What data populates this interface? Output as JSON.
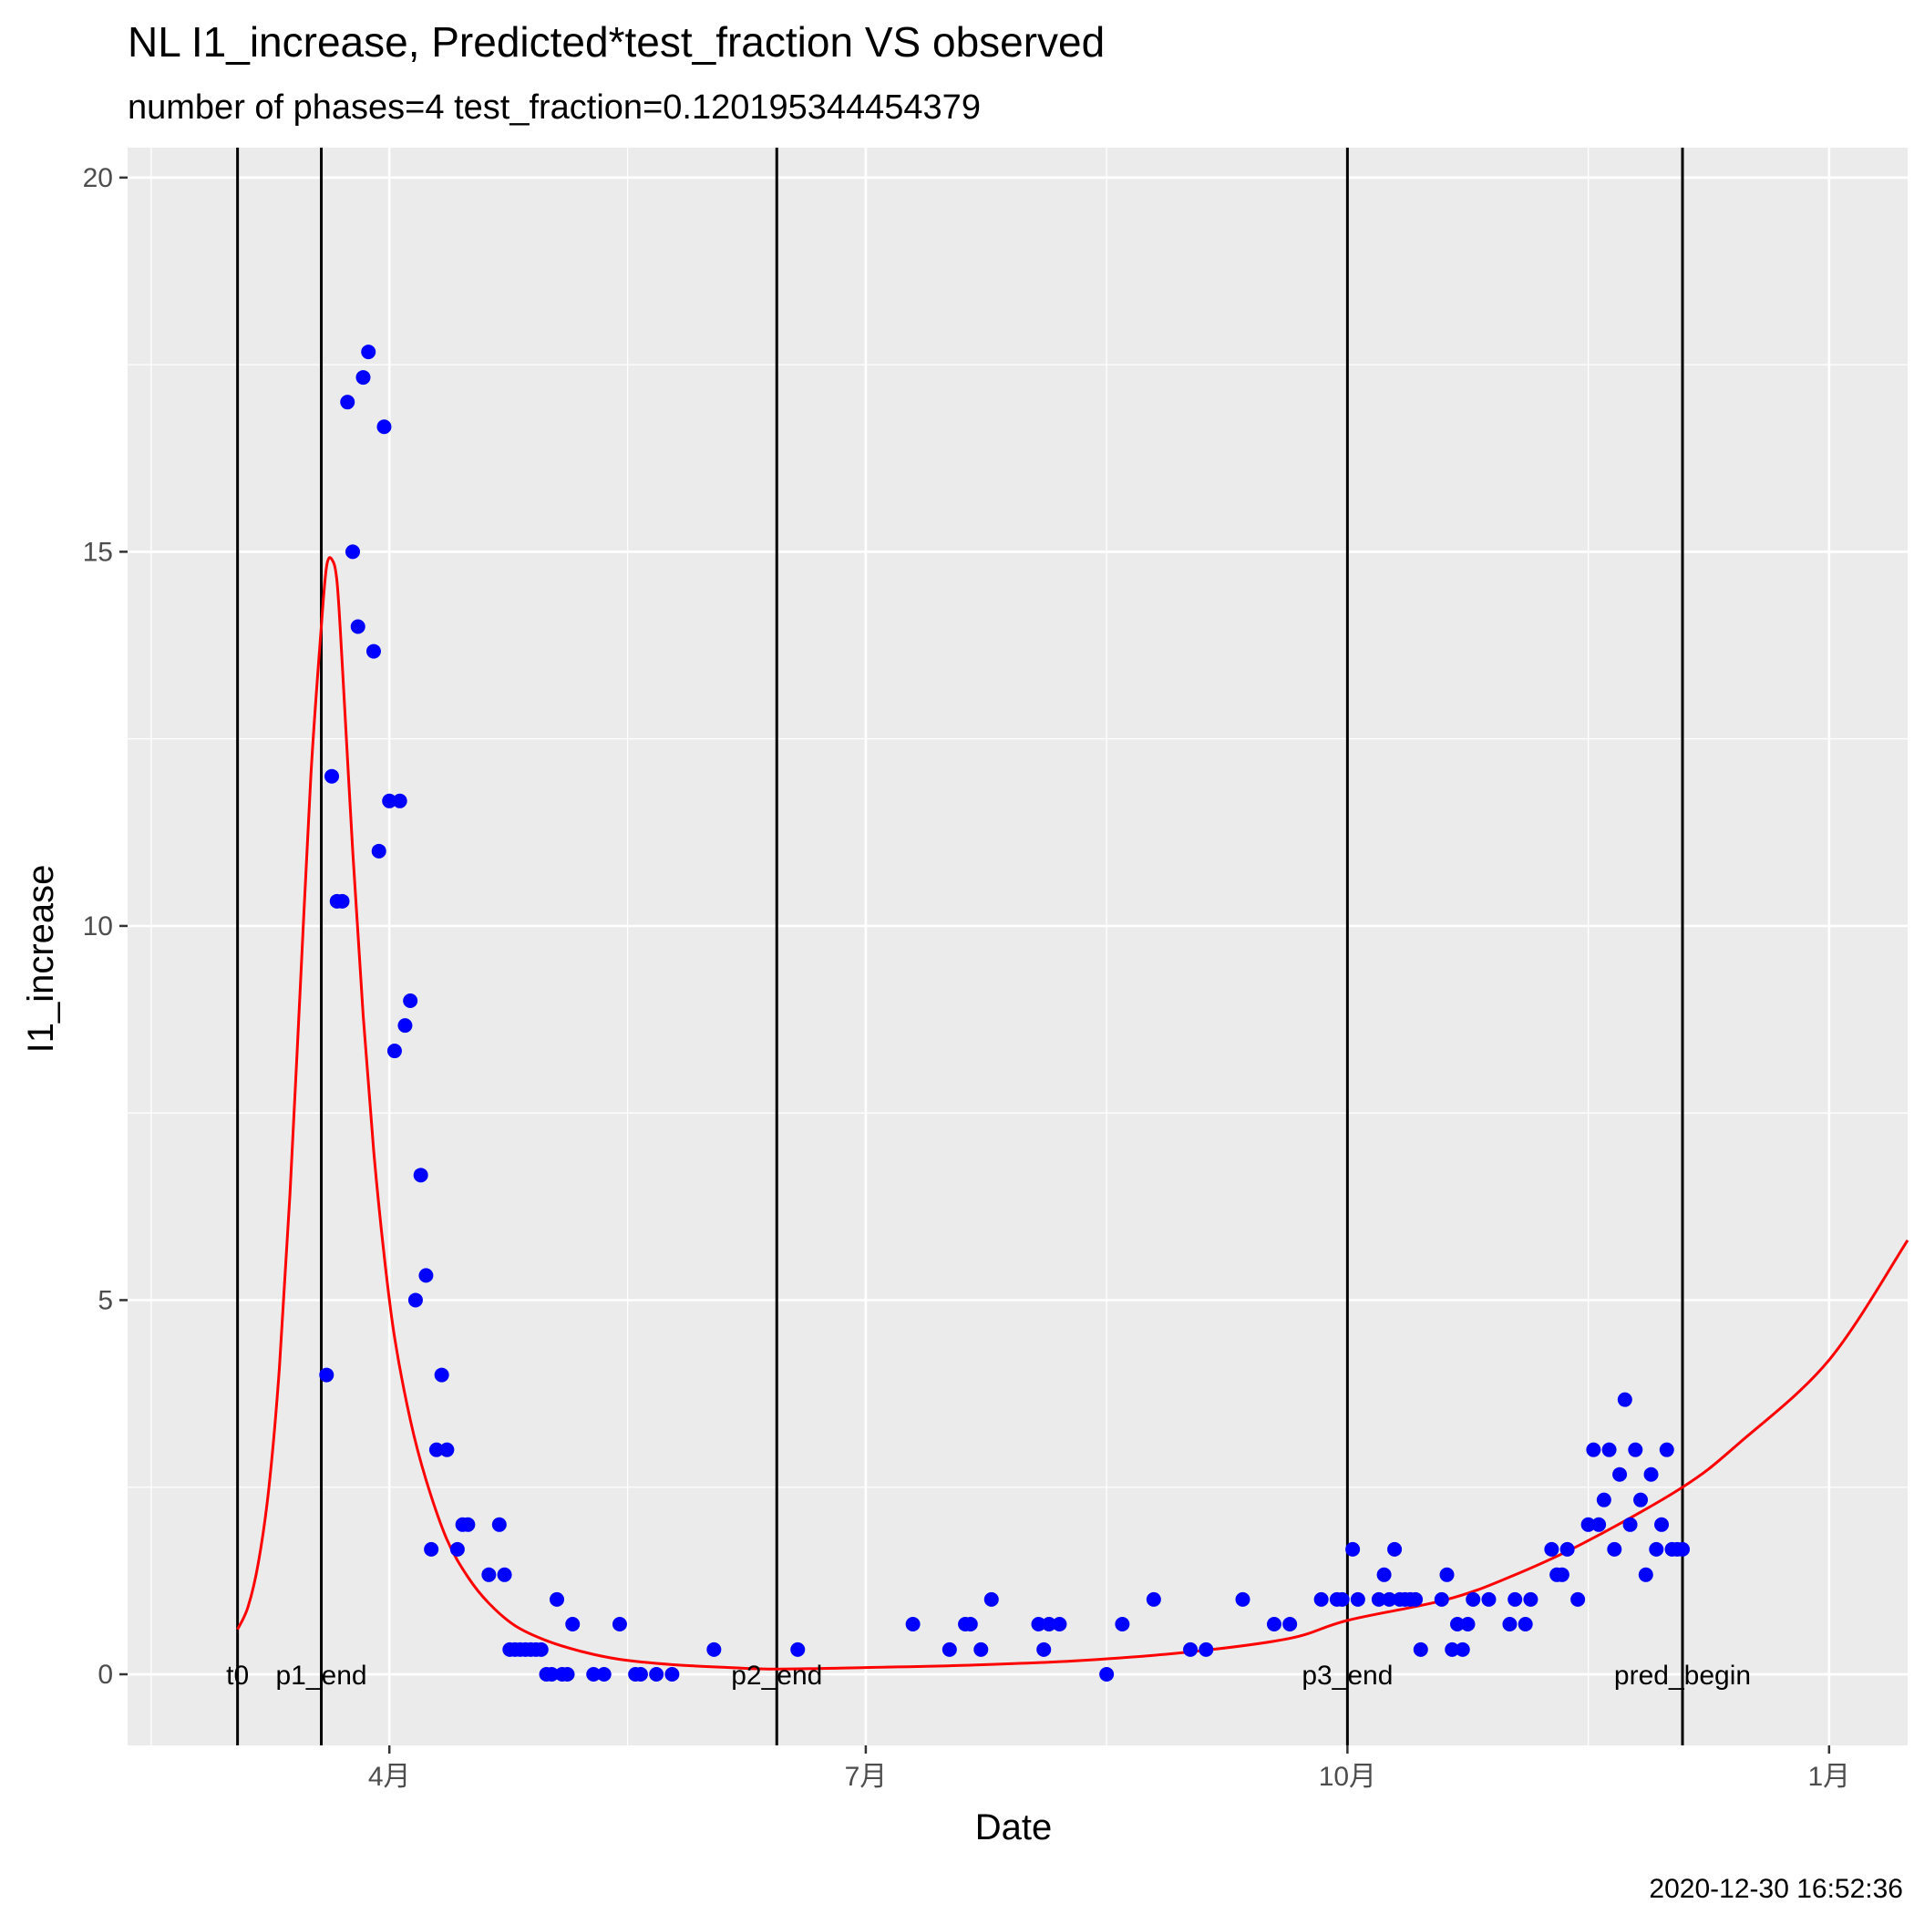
{
  "chart_data": {
    "type": "scatter",
    "title": "NL I1_increase, Predicted*test_fraction VS observed",
    "subtitle": "number of phases=4   test_fraction=0.120195344454379",
    "xlabel": "Date",
    "ylabel": "I1_increase",
    "caption": "2020-12-30 16:52:36",
    "x_ticks": [
      {
        "date": "2020-04-01",
        "label": "4月"
      },
      {
        "date": "2020-07-01",
        "label": "7月"
      },
      {
        "date": "2020-10-01",
        "label": "10月"
      },
      {
        "date": "2021-01-01",
        "label": "1月"
      }
    ],
    "y_ticks": [
      0,
      5,
      10,
      15,
      20
    ],
    "xlim": [
      "2020-02-11",
      "2021-01-16"
    ],
    "ylim": [
      -0.95,
      20.4
    ],
    "grid": true,
    "colors": {
      "panel_bg": "#ebebeb",
      "grid": "#ffffff",
      "observed": "#0000ff",
      "predicted": "#ff0000",
      "vlines": "#000000"
    },
    "vlines": [
      {
        "date": "2020-03-03",
        "label": "t0"
      },
      {
        "date": "2020-03-19",
        "label": "p1_end"
      },
      {
        "date": "2020-06-14",
        "label": "p2_end"
      },
      {
        "date": "2020-10-01",
        "label": "p3_end"
      },
      {
        "date": "2020-12-04",
        "label": "pred_begin"
      }
    ],
    "series": [
      {
        "kind": "observed",
        "points": [
          [
            "2020-03-20",
            4.0
          ],
          [
            "2020-03-21",
            12.0
          ],
          [
            "2020-03-22",
            10.33
          ],
          [
            "2020-03-23",
            10.33
          ],
          [
            "2020-03-24",
            17.0
          ],
          [
            "2020-03-25",
            15.0
          ],
          [
            "2020-03-26",
            14.0
          ],
          [
            "2020-03-27",
            17.33
          ],
          [
            "2020-03-28",
            17.67
          ],
          [
            "2020-03-29",
            13.67
          ],
          [
            "2020-03-30",
            11.0
          ],
          [
            "2020-03-31",
            16.67
          ],
          [
            "2020-04-01",
            11.67
          ],
          [
            "2020-04-02",
            8.33
          ],
          [
            "2020-04-03",
            11.67
          ],
          [
            "2020-04-04",
            8.67
          ],
          [
            "2020-04-05",
            9.0
          ],
          [
            "2020-04-06",
            5.0
          ],
          [
            "2020-04-07",
            6.67
          ],
          [
            "2020-04-08",
            5.33
          ],
          [
            "2020-04-09",
            1.67
          ],
          [
            "2020-04-10",
            3.0
          ],
          [
            "2020-04-11",
            4.0
          ],
          [
            "2020-04-12",
            3.0
          ],
          [
            "2020-04-14",
            1.67
          ],
          [
            "2020-04-15",
            2.0
          ],
          [
            "2020-04-16",
            2.0
          ],
          [
            "2020-04-20",
            1.33
          ],
          [
            "2020-04-22",
            2.0
          ],
          [
            "2020-04-23",
            1.33
          ],
          [
            "2020-04-24",
            0.33
          ],
          [
            "2020-04-25",
            0.33
          ],
          [
            "2020-04-26",
            0.33
          ],
          [
            "2020-04-27",
            0.33
          ],
          [
            "2020-04-28",
            0.33
          ],
          [
            "2020-04-29",
            0.33
          ],
          [
            "2020-04-30",
            0.33
          ],
          [
            "2020-05-01",
            0.0
          ],
          [
            "2020-05-02",
            0.0
          ],
          [
            "2020-05-03",
            1.0
          ],
          [
            "2020-05-04",
            0.0
          ],
          [
            "2020-05-05",
            0.0
          ],
          [
            "2020-05-06",
            0.67
          ],
          [
            "2020-05-10",
            0.0
          ],
          [
            "2020-05-12",
            0.0
          ],
          [
            "2020-05-15",
            0.67
          ],
          [
            "2020-05-18",
            0.0
          ],
          [
            "2020-05-19",
            0.0
          ],
          [
            "2020-05-22",
            0.0
          ],
          [
            "2020-05-25",
            0.0
          ],
          [
            "2020-06-02",
            0.33
          ],
          [
            "2020-06-18",
            0.33
          ],
          [
            "2020-07-10",
            0.67
          ],
          [
            "2020-07-17",
            0.33
          ],
          [
            "2020-07-20",
            0.67
          ],
          [
            "2020-07-21",
            0.67
          ],
          [
            "2020-07-23",
            0.33
          ],
          [
            "2020-07-25",
            1.0
          ],
          [
            "2020-08-03",
            0.67
          ],
          [
            "2020-08-04",
            0.33
          ],
          [
            "2020-08-05",
            0.67
          ],
          [
            "2020-08-07",
            0.67
          ],
          [
            "2020-08-16",
            0.0
          ],
          [
            "2020-08-19",
            0.67
          ],
          [
            "2020-08-25",
            1.0
          ],
          [
            "2020-09-01",
            0.33
          ],
          [
            "2020-09-04",
            0.33
          ],
          [
            "2020-09-11",
            1.0
          ],
          [
            "2020-09-17",
            0.67
          ],
          [
            "2020-09-20",
            0.67
          ],
          [
            "2020-09-26",
            1.0
          ],
          [
            "2020-09-29",
            1.0
          ],
          [
            "2020-09-30",
            1.0
          ],
          [
            "2020-10-02",
            1.67
          ],
          [
            "2020-10-03",
            1.0
          ],
          [
            "2020-10-07",
            1.0
          ],
          [
            "2020-10-08",
            1.33
          ],
          [
            "2020-10-09",
            1.0
          ],
          [
            "2020-10-10",
            1.67
          ],
          [
            "2020-10-11",
            1.0
          ],
          [
            "2020-10-12",
            1.0
          ],
          [
            "2020-10-13",
            1.0
          ],
          [
            "2020-10-14",
            1.0
          ],
          [
            "2020-10-15",
            0.33
          ],
          [
            "2020-10-19",
            1.0
          ],
          [
            "2020-10-20",
            1.33
          ],
          [
            "2020-10-21",
            0.33
          ],
          [
            "2020-10-22",
            0.67
          ],
          [
            "2020-10-23",
            0.33
          ],
          [
            "2020-10-24",
            0.67
          ],
          [
            "2020-10-25",
            1.0
          ],
          [
            "2020-10-28",
            1.0
          ],
          [
            "2020-11-01",
            0.67
          ],
          [
            "2020-11-02",
            1.0
          ],
          [
            "2020-11-04",
            0.67
          ],
          [
            "2020-11-05",
            1.0
          ],
          [
            "2020-11-09",
            1.67
          ],
          [
            "2020-11-10",
            1.33
          ],
          [
            "2020-11-11",
            1.33
          ],
          [
            "2020-11-12",
            1.67
          ],
          [
            "2020-11-14",
            1.0
          ],
          [
            "2020-11-16",
            2.0
          ],
          [
            "2020-11-17",
            3.0
          ],
          [
            "2020-11-18",
            2.0
          ],
          [
            "2020-11-19",
            2.33
          ],
          [
            "2020-11-20",
            3.0
          ],
          [
            "2020-11-21",
            1.67
          ],
          [
            "2020-11-22",
            2.67
          ],
          [
            "2020-11-23",
            3.67
          ],
          [
            "2020-11-24",
            2.0
          ],
          [
            "2020-11-25",
            3.0
          ],
          [
            "2020-11-26",
            2.33
          ],
          [
            "2020-11-27",
            1.33
          ],
          [
            "2020-11-28",
            2.67
          ],
          [
            "2020-11-29",
            1.67
          ],
          [
            "2020-11-30",
            2.0
          ],
          [
            "2020-12-01",
            3.0
          ],
          [
            "2020-12-02",
            1.67
          ],
          [
            "2020-12-03",
            1.67
          ],
          [
            "2020-12-04",
            1.67
          ]
        ]
      },
      {
        "kind": "predicted",
        "points": [
          [
            "2020-03-03",
            0.6
          ],
          [
            "2020-03-05",
            0.9
          ],
          [
            "2020-03-07",
            1.5
          ],
          [
            "2020-03-09",
            2.5
          ],
          [
            "2020-03-11",
            4.1
          ],
          [
            "2020-03-13",
            6.4
          ],
          [
            "2020-03-15",
            9.2
          ],
          [
            "2020-03-17",
            12.0
          ],
          [
            "2020-03-19",
            14.0
          ],
          [
            "2020-03-20",
            14.8
          ],
          [
            "2020-03-21",
            14.9
          ],
          [
            "2020-03-22",
            14.6
          ],
          [
            "2020-03-23",
            13.5
          ],
          [
            "2020-03-25",
            11.0
          ],
          [
            "2020-03-27",
            8.8
          ],
          [
            "2020-03-29",
            7.0
          ],
          [
            "2020-03-31",
            5.6
          ],
          [
            "2020-04-02",
            4.5
          ],
          [
            "2020-04-05",
            3.4
          ],
          [
            "2020-04-08",
            2.6
          ],
          [
            "2020-04-12",
            1.8
          ],
          [
            "2020-04-16",
            1.3
          ],
          [
            "2020-04-20",
            0.95
          ],
          [
            "2020-04-25",
            0.65
          ],
          [
            "2020-05-01",
            0.45
          ],
          [
            "2020-05-08",
            0.3
          ],
          [
            "2020-05-15",
            0.2
          ],
          [
            "2020-05-25",
            0.13
          ],
          [
            "2020-06-05",
            0.09
          ],
          [
            "2020-06-14",
            0.07
          ],
          [
            "2020-07-01",
            0.09
          ],
          [
            "2020-07-20",
            0.12
          ],
          [
            "2020-08-10",
            0.18
          ],
          [
            "2020-09-01",
            0.3
          ],
          [
            "2020-09-20",
            0.48
          ],
          [
            "2020-10-01",
            0.72
          ],
          [
            "2020-10-20",
            1.0
          ],
          [
            "2020-11-01",
            1.3
          ],
          [
            "2020-11-15",
            1.75
          ],
          [
            "2020-12-04",
            2.5
          ],
          [
            "2020-12-15",
            3.1
          ],
          [
            "2021-01-01",
            4.2
          ],
          [
            "2021-01-16",
            5.8
          ]
        ]
      }
    ]
  }
}
